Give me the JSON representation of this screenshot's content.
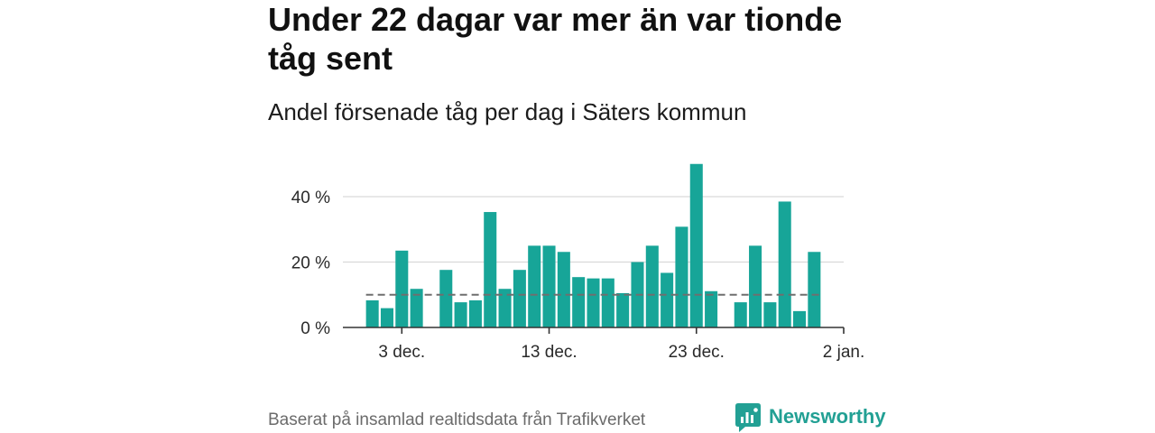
{
  "chart_data": {
    "type": "bar",
    "title": "Under 22 dagar var mer än var tionde tåg sent",
    "subtitle": "Andel försenade tåg per dag i Säters kommun",
    "categories": [
      "1 dec.",
      "2 dec.",
      "3 dec.",
      "4 dec.",
      "5 dec.",
      "6 dec.",
      "7 dec.",
      "8 dec.",
      "9 dec.",
      "10 dec.",
      "11 dec.",
      "12 dec.",
      "13 dec.",
      "14 dec.",
      "15 dec.",
      "16 dec.",
      "17 dec.",
      "18 dec.",
      "19 dec.",
      "20 dec.",
      "21 dec.",
      "22 dec.",
      "23 dec.",
      "24 dec.",
      "25 dec.",
      "26 dec.",
      "27 dec.",
      "28 dec.",
      "29 dec.",
      "30 dec.",
      "31 dec."
    ],
    "values": [
      8.3,
      5.9,
      23.5,
      11.8,
      0,
      17.6,
      7.7,
      8.3,
      35.3,
      11.8,
      17.6,
      25,
      25,
      23.1,
      15.4,
      15,
      15,
      10.5,
      20,
      25,
      16.7,
      30.8,
      50,
      11.1,
      0,
      7.7,
      25,
      7.7,
      38.5,
      5,
      23.1
    ],
    "xlim": [
      "29 nov.",
      "2 jan."
    ],
    "x_ticks": [
      "3 dec.",
      "13 dec.",
      "23 dec.",
      "2 jan."
    ],
    "ylim": [
      0,
      52
    ],
    "y_ticks": [
      0,
      20,
      40
    ],
    "y_tick_labels": [
      "0 %",
      "20 %",
      "40 %"
    ],
    "reference_line": {
      "value": 10,
      "dashed": true
    },
    "grid": true
  },
  "footer": {
    "source": "Baserat på insamlad realtidsdata från Trafikverket"
  },
  "logo": {
    "text": "Newsworthy",
    "icon": "chart-speech-bubble-icon"
  },
  "colors": {
    "bar": "#17a598",
    "grid": "#d9d9d9",
    "axis": "#333333",
    "reference_line": "#6f6f6f",
    "logo": "#22a094"
  }
}
